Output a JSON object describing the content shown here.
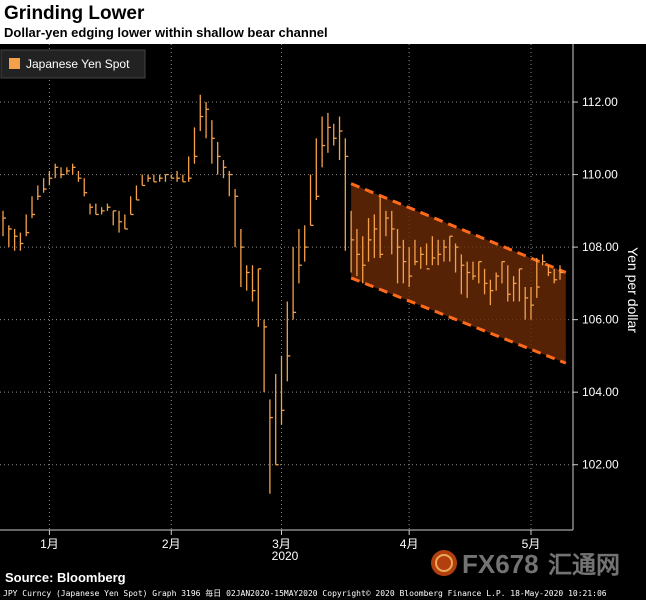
{
  "header": {
    "title": "Grinding Lower",
    "subtitle": "Dollar-yen edging lower within shallow bear channel"
  },
  "source": "Source: Bloomberg",
  "footer": "JPY Curncy (Japanese Yen Spot) Graph 3196  毎日 02JAN2020-15MAY2020 Copyright© 2020 Bloomberg Finance L.P.  18-May-2020 10:21:06",
  "watermark": {
    "brand": "FX678",
    "cn": "汇通网"
  },
  "colors": {
    "background": "#000000",
    "series": "#f5a04a",
    "channel": "#ff6a1a",
    "channel_fill": "#6b2a06",
    "grid": "#8a8a8a",
    "text": "#ffffff"
  },
  "chart_data": {
    "type": "line",
    "style": "ohlc-bars",
    "title": "",
    "ylabel": "Yen per dollar",
    "xlabel": "",
    "year_label": "2020",
    "ylim": [
      100.2,
      113.6
    ],
    "yticks": [
      102,
      104,
      106,
      108,
      110,
      112
    ],
    "ytick_labels": [
      "102.00",
      "104.00",
      "106.00",
      "108.00",
      "110.00",
      "112.00"
    ],
    "x_month_ticks": [
      {
        "label": "1月",
        "index": 8
      },
      {
        "label": "2月",
        "index": 29
      },
      {
        "label": "3月",
        "index": 48
      },
      {
        "label": "4月",
        "index": 70
      },
      {
        "label": "5月",
        "index": 91
      }
    ],
    "x_count": 97,
    "grid": true,
    "legend": {
      "position": "top-left",
      "entries": [
        "Japanese Yen Spot"
      ]
    },
    "series": [
      {
        "name": "Japanese Yen Spot",
        "values": [
          108.8,
          108.5,
          108.3,
          108.1,
          108.4,
          108.9,
          109.4,
          109.6,
          109.9,
          110.2,
          110.0,
          110.1,
          110.2,
          109.9,
          109.5,
          109.1,
          108.9,
          109.0,
          109.1,
          109.0,
          108.7,
          108.5,
          108.9,
          109.3,
          109.7,
          109.9,
          109.8,
          109.9,
          110.0,
          109.9,
          109.9,
          109.8,
          109.9,
          110.5,
          111.6,
          111.8,
          111.0,
          110.5,
          110.2,
          110.0,
          109.4,
          108.0,
          107.3,
          106.8,
          107.4,
          105.8,
          103.3,
          102.0,
          103.5,
          105.0,
          106.2,
          107.5,
          108.0,
          108.6,
          109.4,
          110.8,
          111.3,
          111.0,
          111.2,
          110.5,
          108.2,
          107.8,
          107.5,
          108.2,
          108.5,
          107.8,
          108.8,
          108.5,
          108.0,
          107.6,
          107.2,
          107.6,
          107.8,
          107.4,
          107.7,
          107.8,
          108.0,
          108.3,
          108.0,
          107.5,
          107.3,
          107.2,
          107.6,
          107.0,
          106.8,
          107.2,
          107.6,
          106.7,
          107.0,
          107.4,
          106.6,
          106.4,
          106.9,
          107.6,
          107.3,
          107.1,
          107.3
        ],
        "highs": [
          109.0,
          108.6,
          108.5,
          108.4,
          108.9,
          109.4,
          109.7,
          109.9,
          110.1,
          110.3,
          110.2,
          110.2,
          110.3,
          110.1,
          109.9,
          109.2,
          109.2,
          109.1,
          109.2,
          109.0,
          109.0,
          108.9,
          109.4,
          109.7,
          110.0,
          110.0,
          110.0,
          110.0,
          110.0,
          110.0,
          110.1,
          110.0,
          110.5,
          111.3,
          112.2,
          112.0,
          111.5,
          110.9,
          110.4,
          110.1,
          109.6,
          108.5,
          107.5,
          107.5,
          107.4,
          106.0,
          103.8,
          104.5,
          105.0,
          106.5,
          108.0,
          108.5,
          108.6,
          110.0,
          111.0,
          111.6,
          111.7,
          111.4,
          111.6,
          111.0,
          109.0,
          108.5,
          108.3,
          108.8,
          108.9,
          109.4,
          109.0,
          109.0,
          108.5,
          108.2,
          108.0,
          108.2,
          108.0,
          108.1,
          108.3,
          108.2,
          108.2,
          108.3,
          108.1,
          107.8,
          107.6,
          107.6,
          107.6,
          107.4,
          107.1,
          107.3,
          107.6,
          107.5,
          107.2,
          107.4,
          106.9,
          106.9,
          107.7,
          107.8,
          107.5,
          107.4,
          107.5
        ],
        "lows": [
          108.3,
          108.0,
          107.9,
          107.9,
          108.3,
          108.8,
          109.3,
          109.5,
          109.7,
          109.9,
          109.9,
          110.0,
          110.0,
          109.8,
          109.4,
          108.9,
          108.9,
          108.9,
          109.0,
          108.6,
          108.4,
          108.5,
          108.9,
          109.3,
          109.7,
          109.8,
          109.8,
          109.8,
          109.8,
          109.9,
          109.8,
          109.8,
          109.8,
          110.3,
          111.2,
          111.0,
          110.3,
          110.0,
          109.9,
          109.4,
          108.0,
          106.9,
          106.8,
          106.5,
          105.8,
          104.0,
          101.2,
          102.0,
          103.1,
          104.3,
          106.0,
          107.0,
          107.6,
          108.6,
          109.3,
          110.2,
          110.6,
          110.8,
          110.4,
          107.9,
          107.3,
          107.2,
          107.0,
          107.6,
          107.7,
          107.7,
          108.3,
          107.8,
          107.0,
          107.0,
          106.9,
          107.5,
          107.4,
          107.5,
          107.5,
          107.5,
          107.6,
          107.6,
          107.3,
          106.7,
          106.6,
          107.1,
          107.0,
          106.7,
          106.4,
          106.8,
          107.0,
          106.5,
          106.5,
          106.5,
          106.0,
          106.0,
          106.6,
          107.5,
          107.2,
          107.0,
          107.1
        ]
      }
    ],
    "channel": {
      "upper": {
        "from": {
          "index": 60,
          "value": 109.75
        },
        "to": {
          "index": 97,
          "value": 107.3
        }
      },
      "lower": {
        "from": {
          "index": 60,
          "value": 107.15
        },
        "to": {
          "index": 97,
          "value": 104.8
        }
      }
    }
  }
}
